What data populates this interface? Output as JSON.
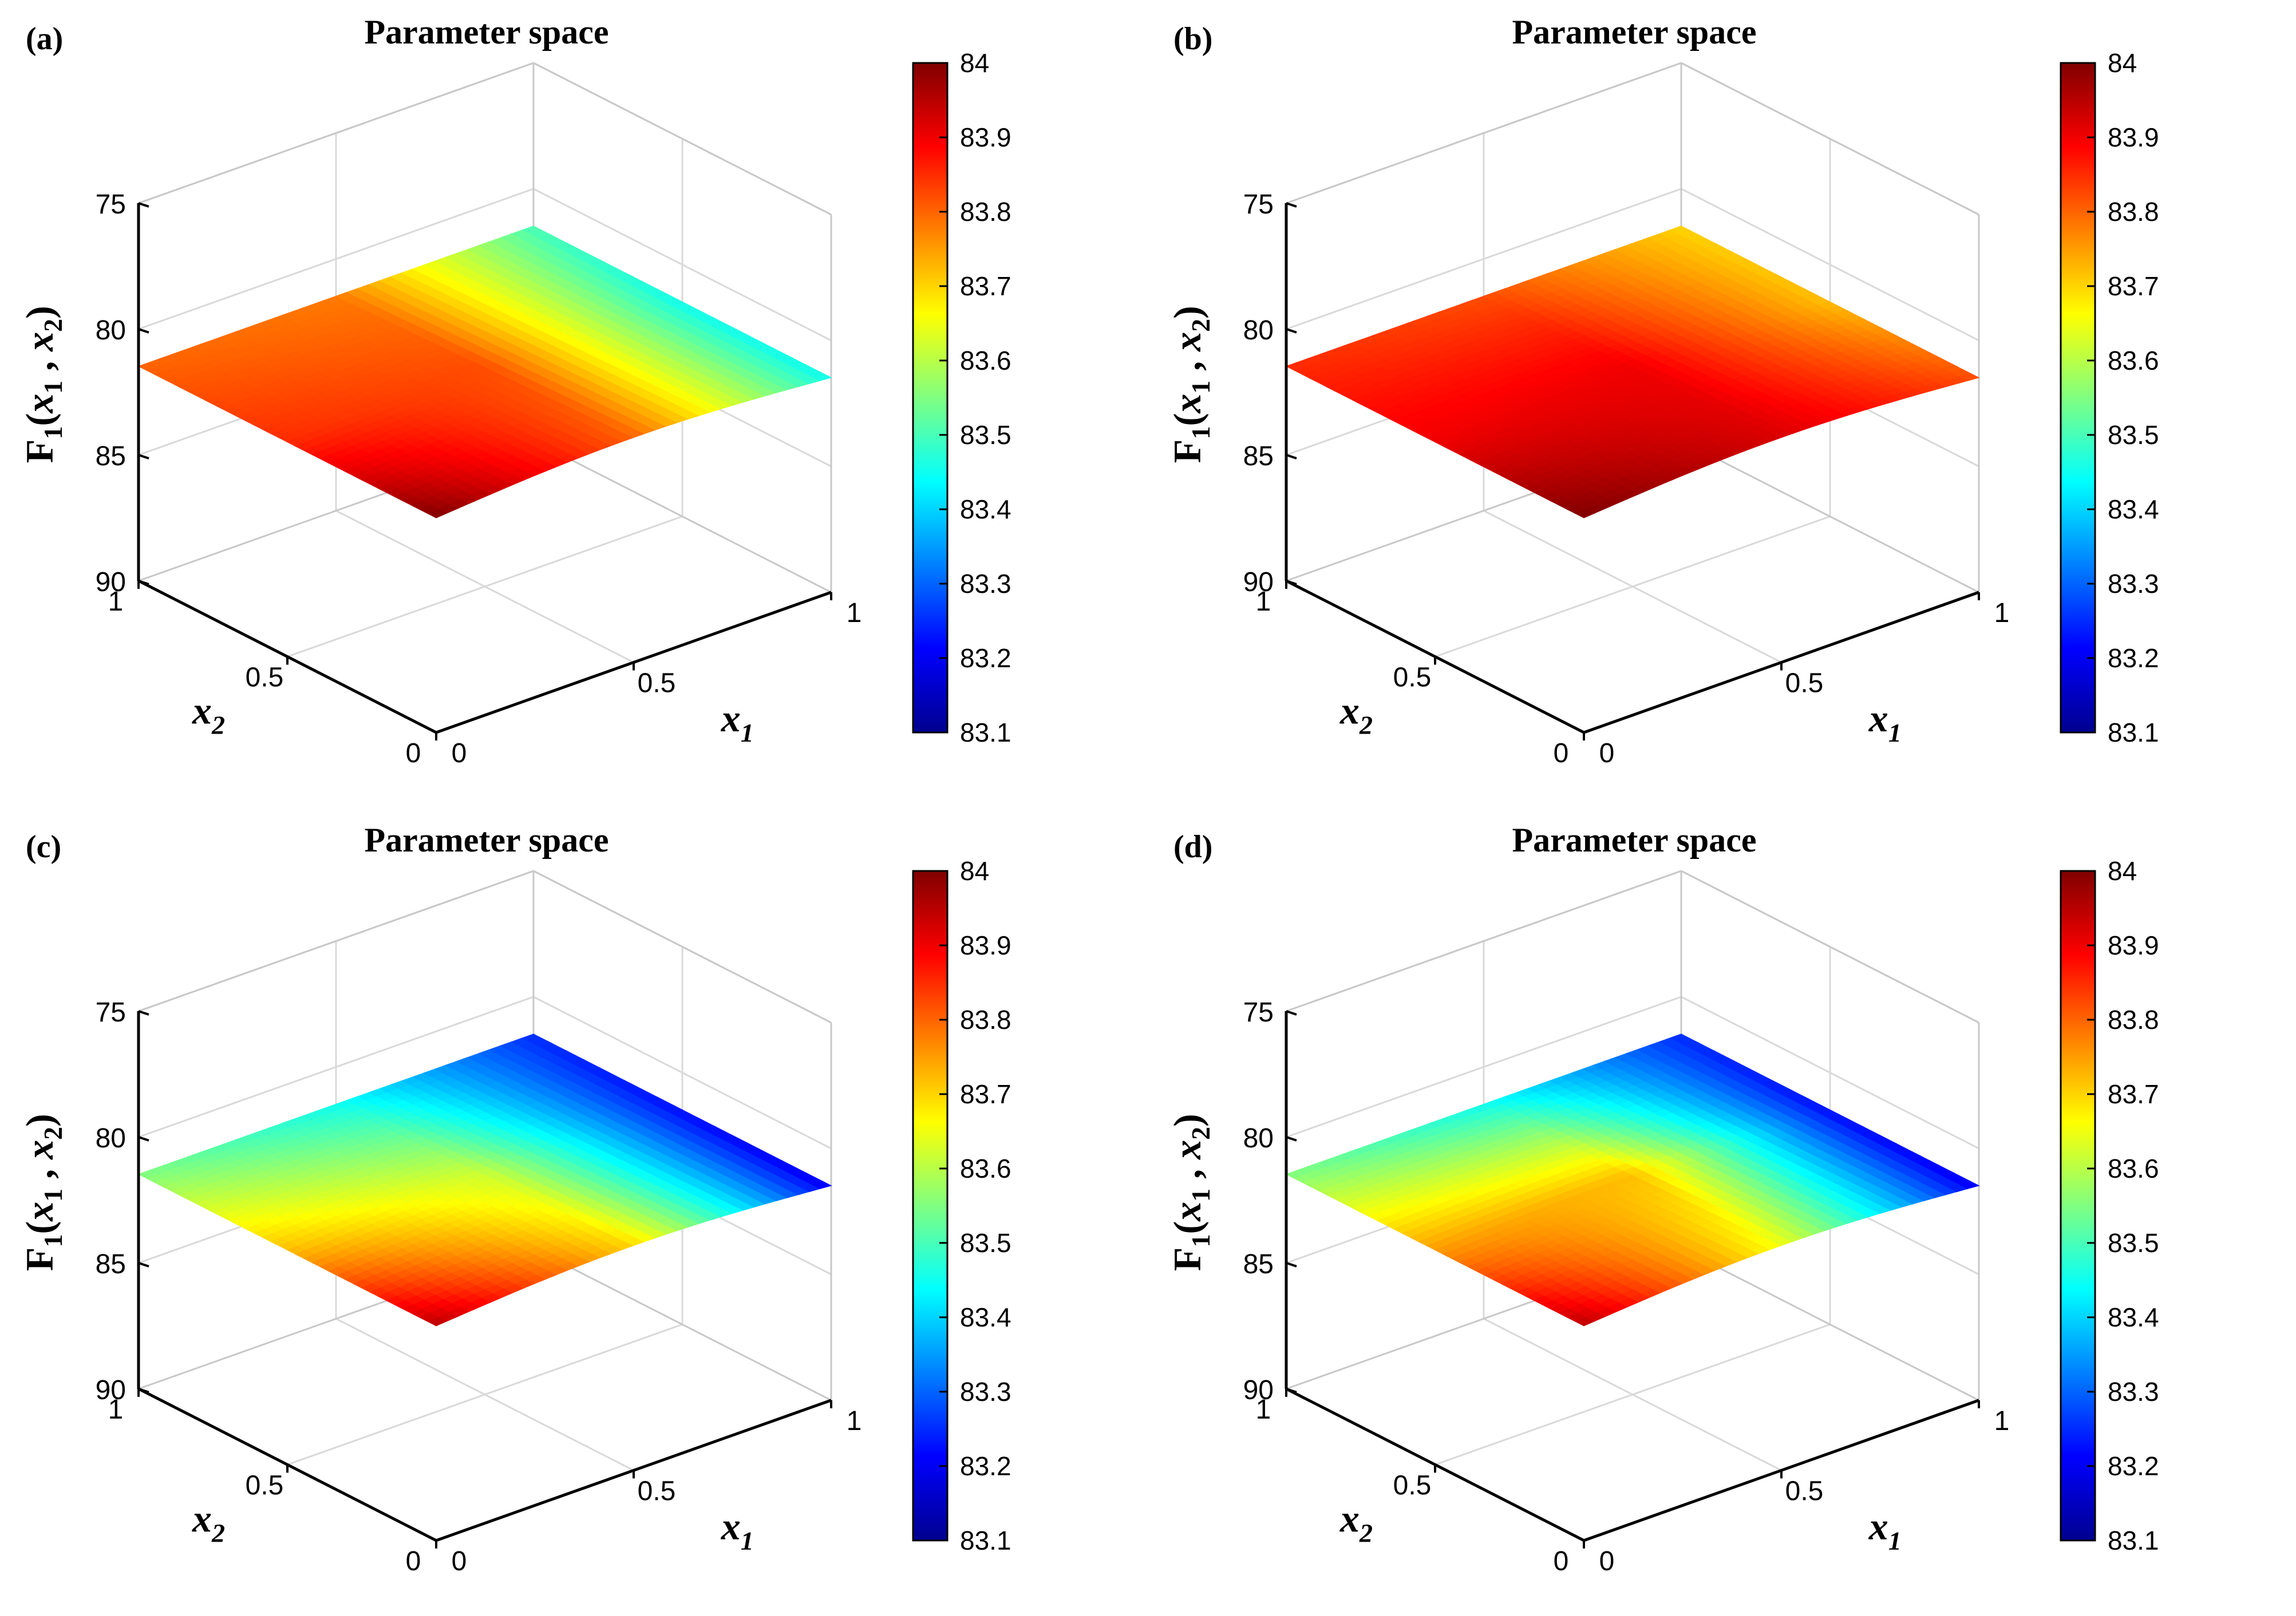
{
  "figure": {
    "panel_count": 4
  },
  "colormap": [
    "#00008f",
    "#0000ff",
    "#0080ff",
    "#00ffff",
    "#80ff80",
    "#ffff00",
    "#ff8000",
    "#ff0000",
    "#800000"
  ],
  "chart_data": [
    {
      "type": "surface3d",
      "panel_label": "(a)",
      "title": "Parameter space",
      "xlabel": "x",
      "xlabel_sub": "1",
      "ylabel": "x",
      "ylabel_sub": "2",
      "zlabel": "F",
      "zlabel_sub": "1",
      "zlabel_args": "(x",
      "zlabel_args_sub": "1",
      "zlabel_args_mid": ", x",
      "zlabel_args_sub2": "2",
      "zlabel_close": ")",
      "xlim": [
        0,
        1
      ],
      "ylim": [
        0,
        1
      ],
      "zlim": [
        75,
        90
      ],
      "z_reversed": true,
      "x_ticks": [
        "0",
        "0.5",
        "1"
      ],
      "y_ticks": [
        "0",
        "0.5",
        "1"
      ],
      "z_ticks": [
        "75",
        "80",
        "85",
        "90"
      ],
      "colorbar": {
        "range": [
          83.1,
          84.0
        ],
        "ticks": [
          "84",
          "83.9",
          "83.8",
          "83.7",
          "83.6",
          "83.5",
          "83.4",
          "83.3",
          "83.2",
          "83.1"
        ]
      },
      "surface_color_grid": {
        "x": [
          0,
          0.5,
          1
        ],
        "y": [
          0,
          0.5,
          1
        ],
        "values": [
          [
            84.0,
            83.8,
            83.45
          ],
          [
            83.85,
            83.82,
            83.45
          ],
          [
            83.8,
            83.78,
            83.5
          ]
        ]
      }
    },
    {
      "type": "surface3d",
      "panel_label": "(b)",
      "title": "Parameter space",
      "xlabel": "x",
      "xlabel_sub": "1",
      "ylabel": "x",
      "ylabel_sub": "2",
      "zlabel": "F",
      "zlabel_sub": "1",
      "zlabel_args": "(x",
      "zlabel_args_sub": "1",
      "zlabel_args_mid": ", x",
      "zlabel_args_sub2": "2",
      "zlabel_close": ")",
      "xlim": [
        0,
        1
      ],
      "ylim": [
        0,
        1
      ],
      "zlim": [
        75,
        90
      ],
      "z_reversed": true,
      "x_ticks": [
        "0",
        "0.5",
        "1"
      ],
      "y_ticks": [
        "0",
        "0.5",
        "1"
      ],
      "z_ticks": [
        "75",
        "80",
        "85",
        "90"
      ],
      "colorbar": {
        "range": [
          83.1,
          84.0
        ],
        "ticks": [
          "84",
          "83.9",
          "83.8",
          "83.7",
          "83.6",
          "83.5",
          "83.4",
          "83.3",
          "83.2",
          "83.1"
        ]
      },
      "surface_color_grid": {
        "x": [
          0,
          0.5,
          1
        ],
        "y": [
          0,
          0.5,
          1
        ],
        "values": [
          [
            84.0,
            83.92,
            83.82
          ],
          [
            83.9,
            83.9,
            83.72
          ],
          [
            83.85,
            83.82,
            83.7
          ]
        ]
      }
    },
    {
      "type": "surface3d",
      "panel_label": "(c)",
      "title": "Parameter space",
      "xlabel": "x",
      "xlabel_sub": "1",
      "ylabel": "x",
      "ylabel_sub": "2",
      "zlabel": "F",
      "zlabel_sub": "1",
      "zlabel_args": "(x",
      "zlabel_args_sub": "1",
      "zlabel_args_mid": ", x",
      "zlabel_args_sub2": "2",
      "zlabel_close": ")",
      "xlim": [
        0,
        1
      ],
      "ylim": [
        0,
        1
      ],
      "zlim": [
        75,
        90
      ],
      "z_reversed": true,
      "x_ticks": [
        "0",
        "0.5",
        "1"
      ],
      "y_ticks": [
        "0",
        "0.5",
        "1"
      ],
      "z_ticks": [
        "75",
        "80",
        "85",
        "90"
      ],
      "colorbar": {
        "range": [
          83.1,
          84.0
        ],
        "ticks": [
          "84",
          "83.9",
          "83.8",
          "83.7",
          "83.6",
          "83.5",
          "83.4",
          "83.3",
          "83.2",
          "83.1"
        ]
      },
      "surface_color_grid": {
        "x": [
          0,
          0.5,
          1
        ],
        "y": [
          0,
          0.5,
          1
        ],
        "values": [
          [
            83.95,
            83.7,
            83.2
          ],
          [
            83.72,
            83.62,
            83.22
          ],
          [
            83.55,
            83.45,
            83.25
          ]
        ]
      }
    },
    {
      "type": "surface3d",
      "panel_label": "(d)",
      "title": "Parameter space",
      "xlabel": "x",
      "xlabel_sub": "1",
      "ylabel": "x",
      "ylabel_sub": "2",
      "zlabel": "F",
      "zlabel_sub": "1",
      "zlabel_args": "(x",
      "zlabel_args_sub": "1",
      "zlabel_args_mid": ", x",
      "zlabel_args_sub2": "2",
      "zlabel_close": ")",
      "xlim": [
        0,
        1
      ],
      "ylim": [
        0,
        1
      ],
      "zlim": [
        75,
        90
      ],
      "z_reversed": true,
      "x_ticks": [
        "0",
        "0.5",
        "1"
      ],
      "y_ticks": [
        "0",
        "0.5",
        "1"
      ],
      "z_ticks": [
        "75",
        "80",
        "85",
        "90"
      ],
      "colorbar": {
        "range": [
          83.1,
          84.0
        ],
        "ticks": [
          "84",
          "83.9",
          "83.8",
          "83.7",
          "83.6",
          "83.5",
          "83.4",
          "83.3",
          "83.2",
          "83.1"
        ]
      },
      "surface_color_grid": {
        "x": [
          0,
          0.5,
          1
        ],
        "y": [
          0,
          0.5,
          1
        ],
        "values": [
          [
            83.95,
            83.65,
            83.2
          ],
          [
            83.75,
            83.72,
            83.22
          ],
          [
            83.55,
            83.45,
            83.25
          ]
        ]
      }
    }
  ]
}
